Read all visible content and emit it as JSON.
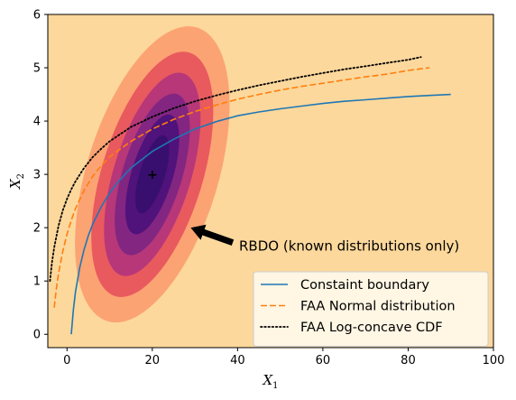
{
  "chart_data": {
    "type": "line",
    "title": "",
    "xlabel": "X",
    "xlabel_sub": "1",
    "ylabel": "X",
    "ylabel_sub": "2",
    "xlim": [
      -4.5,
      100
    ],
    "ylim": [
      -0.25,
      6
    ],
    "xticks": [
      0,
      20,
      40,
      60,
      80,
      100
    ],
    "yticks": [
      0,
      1,
      2,
      3,
      4,
      5,
      6
    ],
    "grid": false,
    "legend_position": "lower-right",
    "background_color": "#fcd89c",
    "series": [
      {
        "name": "Constaint boundary",
        "style": "solid",
        "color": "#1f77b4",
        "x": [
          1,
          1.5,
          2,
          3,
          4,
          5,
          6,
          8,
          10,
          12,
          15,
          20,
          25,
          30,
          35,
          40,
          45,
          50,
          55,
          60,
          65,
          70,
          75,
          80,
          85,
          90
        ],
        "y": [
          0.0,
          0.47,
          0.8,
          1.26,
          1.59,
          1.85,
          2.06,
          2.39,
          2.65,
          2.86,
          3.12,
          3.43,
          3.66,
          3.85,
          3.99,
          4.1,
          4.17,
          4.23,
          4.28,
          4.33,
          4.37,
          4.4,
          4.43,
          4.46,
          4.48,
          4.5
        ]
      },
      {
        "name": "FAA Normal distribution",
        "style": "dashed",
        "color": "#ff7f0e",
        "x": [
          -3,
          -2.5,
          -2,
          -1,
          0,
          1,
          2,
          4,
          6,
          8,
          10,
          15,
          20,
          25,
          30,
          35,
          40,
          45,
          50,
          55,
          60,
          65,
          70,
          75,
          80,
          85
        ],
        "y": [
          0.5,
          0.86,
          1.13,
          1.55,
          1.88,
          2.14,
          2.36,
          2.7,
          2.96,
          3.16,
          3.33,
          3.62,
          3.85,
          4.03,
          4.18,
          4.3,
          4.41,
          4.5,
          4.58,
          4.65,
          4.71,
          4.77,
          4.83,
          4.88,
          4.95,
          5.0
        ]
      },
      {
        "name": "FAA Log-concave CDF",
        "style": "dotted",
        "color": "#000000",
        "x": [
          -4,
          -3.5,
          -3,
          -2,
          -1,
          0,
          1,
          2,
          4,
          6,
          8,
          10,
          15,
          20,
          25,
          30,
          35,
          40,
          45,
          50,
          55,
          60,
          65,
          70,
          75,
          80,
          83
        ],
        "y": [
          1.0,
          1.36,
          1.63,
          2.03,
          2.32,
          2.54,
          2.72,
          2.87,
          3.12,
          3.32,
          3.48,
          3.62,
          3.89,
          4.08,
          4.24,
          4.37,
          4.48,
          4.58,
          4.67,
          4.75,
          4.83,
          4.9,
          4.97,
          5.03,
          5.09,
          5.15,
          5.2
        ]
      }
    ],
    "contours": {
      "center": [
        20,
        3.0
      ],
      "angle_deg": -73,
      "colors": [
        "#fca373",
        "#e85a5e",
        "#b73779",
        "#822681",
        "#50127b",
        "#380f6f"
      ]
    },
    "annotations": [
      {
        "text": "RBDO (known distributions only)",
        "text_xy": [
          39.5,
          1.5
        ],
        "arrow_tip": [
          29,
          2.0
        ]
      }
    ],
    "center_marker": {
      "text": "+",
      "xy": [
        20,
        3.0
      ]
    }
  }
}
